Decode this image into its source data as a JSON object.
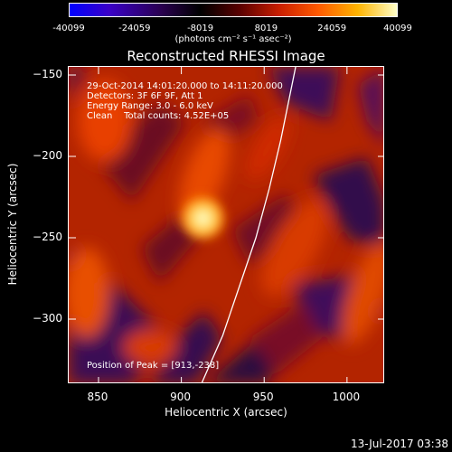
{
  "chart_data": {
    "type": "heatmap",
    "title": "Reconstructed RHESSI Image",
    "xlabel": "Heliocentric X (arcsec)",
    "ylabel": "Heliocentric Y (arcsec)",
    "xlim": [
      832,
      1023
    ],
    "ylim": [
      -340,
      -145
    ],
    "x_ticks": [
      850,
      900,
      950,
      1000
    ],
    "y_ticks": [
      -150,
      -200,
      -250,
      -300
    ],
    "colorbar": {
      "min": -40099,
      "max": 40099,
      "ticks": [
        -40099,
        -24059,
        -8019,
        8019,
        24059,
        40099
      ],
      "label": "(photons cm⁻² s⁻¹ asec⁻²)"
    },
    "annotations": [
      "29-Oct-2014 14:01:20.000 to 14:11:20.000",
      "Detectors: 3F 6F 9F, Att 1",
      "Energy Range: 3.0 - 6.0 keV",
      "Clean    Total counts: 4.52E+05"
    ],
    "peak_label": "Position of Peak = [913,-238]",
    "peak": [
      913,
      -238
    ],
    "limb": [
      [
        912,
        -340
      ],
      [
        925,
        -310
      ],
      [
        935,
        -280
      ],
      [
        945,
        -250
      ],
      [
        953,
        -220
      ],
      [
        960,
        -190
      ],
      [
        966,
        -160
      ],
      [
        969,
        -145
      ]
    ]
  },
  "footer": "13-Jul-2017 03:38",
  "colors": {
    "background": "#000000",
    "text": "#ffffff"
  }
}
